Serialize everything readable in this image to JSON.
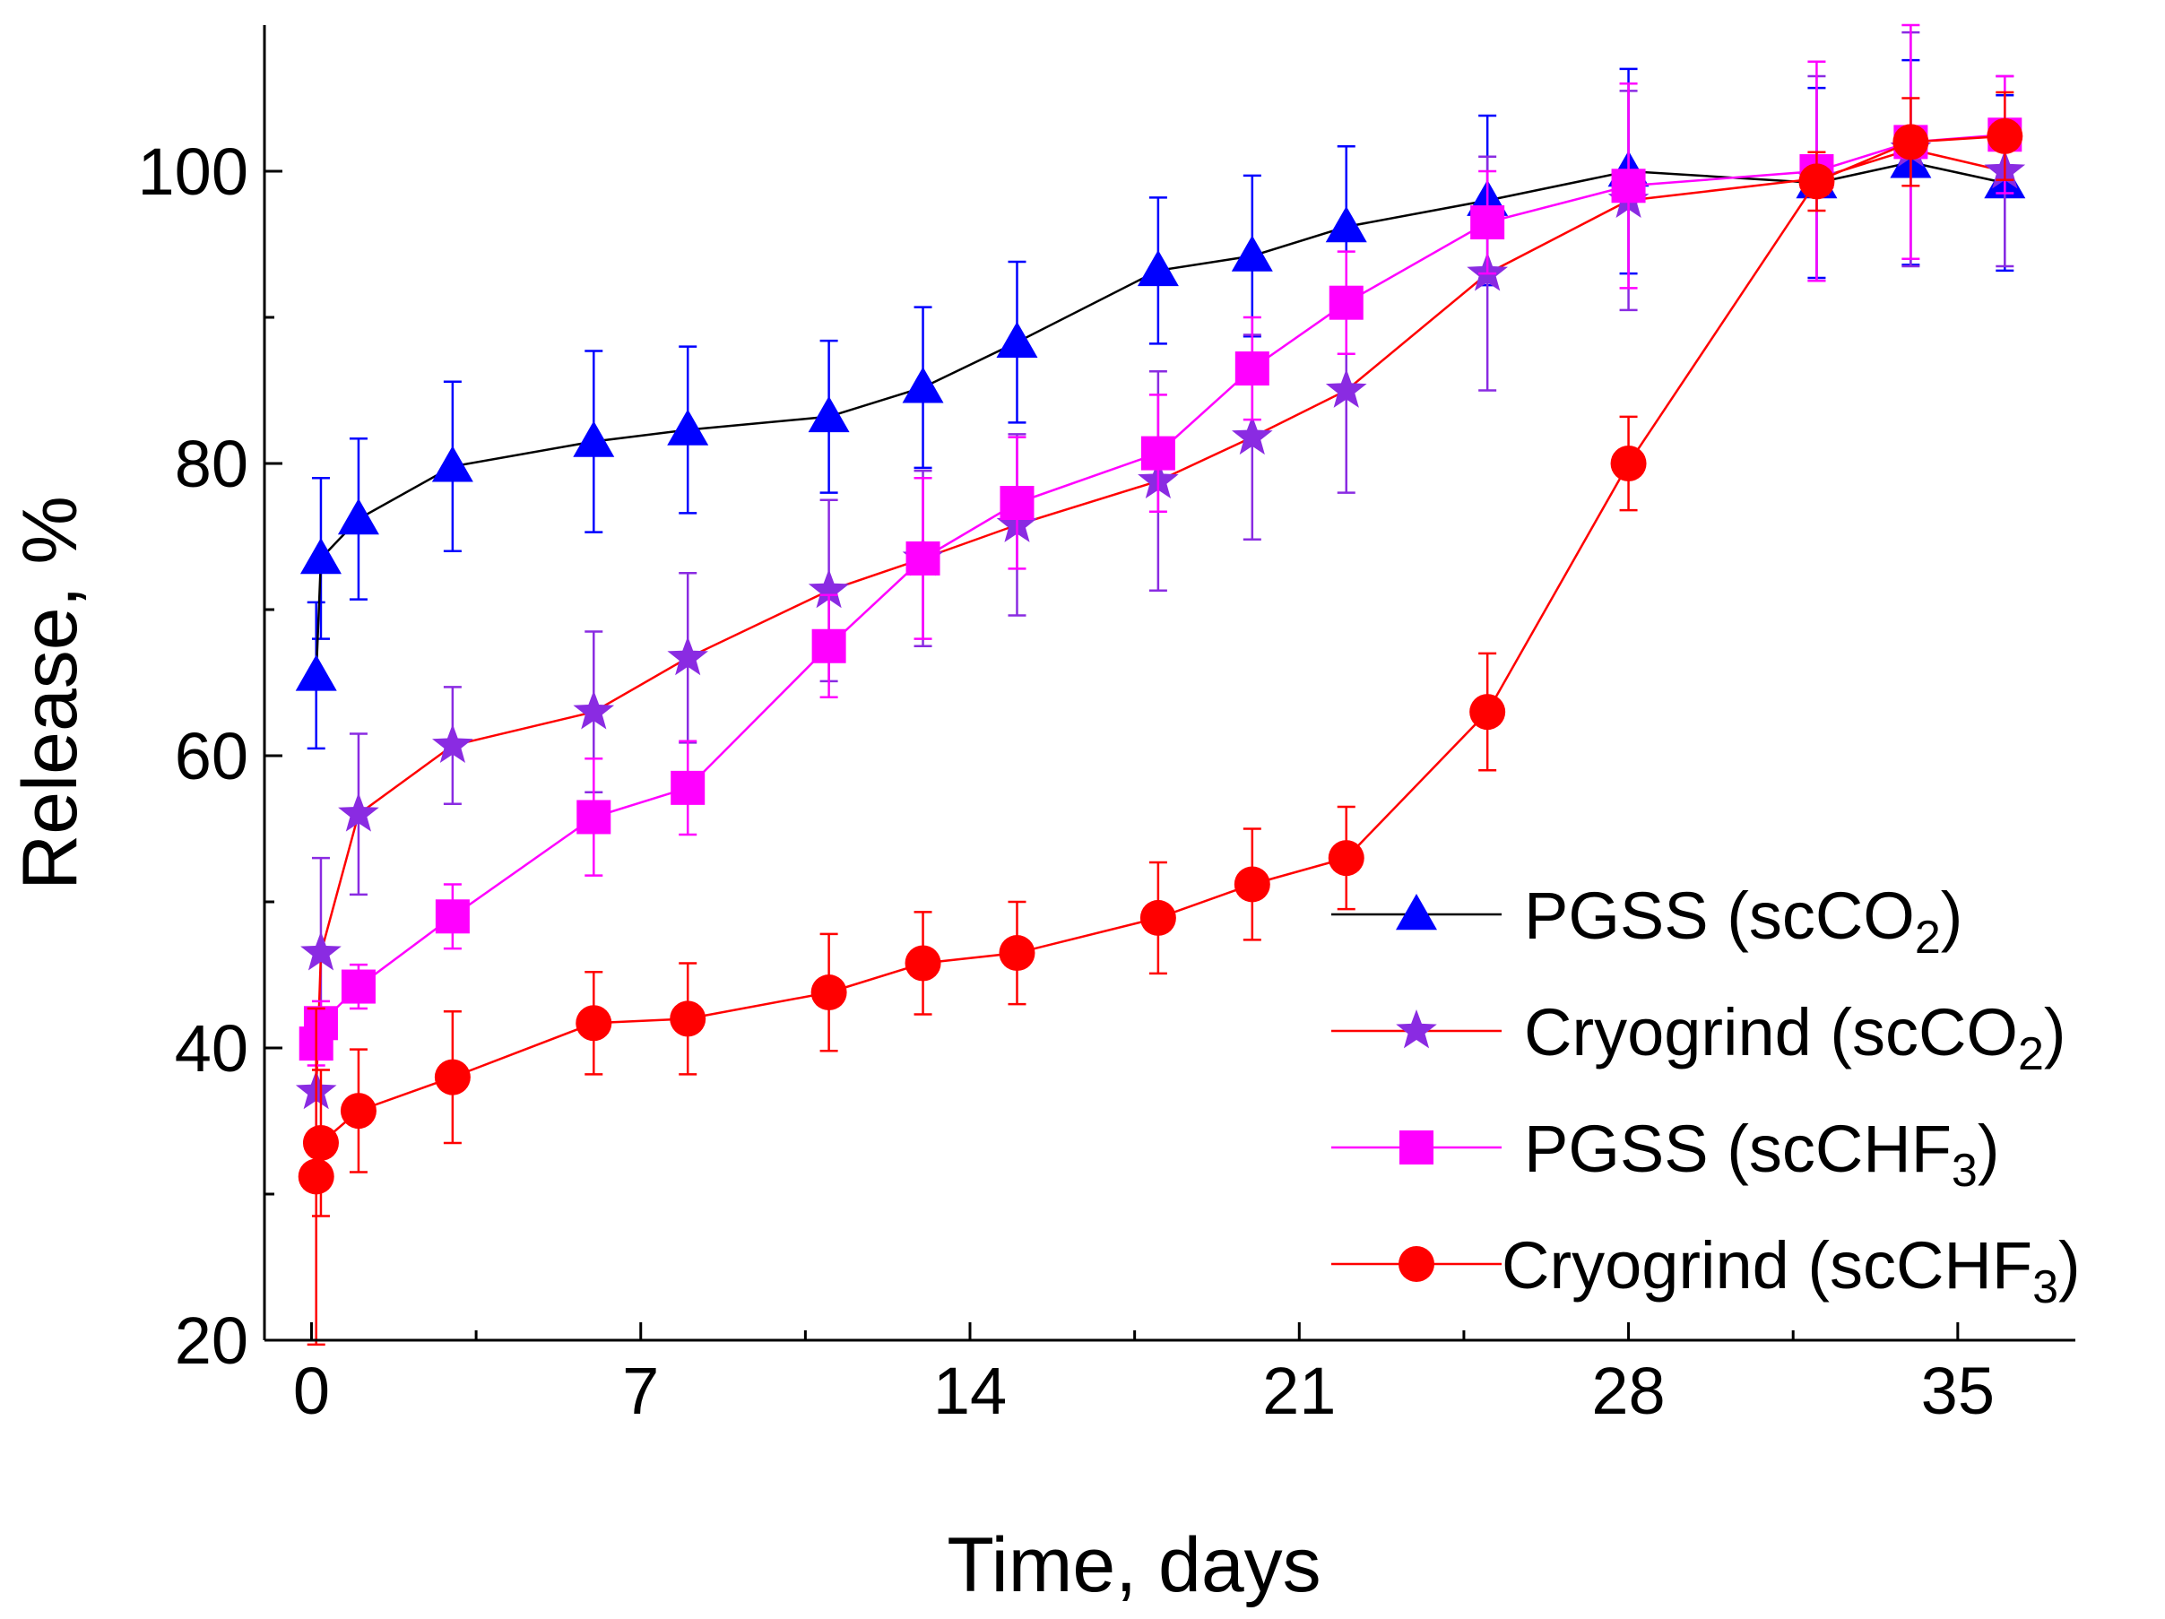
{
  "chart_data": {
    "type": "line",
    "title": "",
    "xlabel": "Time, days",
    "ylabel": "Release, %",
    "xlim": [
      -1,
      37.5
    ],
    "ylim": [
      20,
      110
    ],
    "xticks": [
      0,
      7,
      14,
      21,
      28,
      35
    ],
    "xtick_labels": [
      "0",
      "7",
      "14",
      "21",
      "28",
      "35"
    ],
    "yticks": [
      20,
      40,
      60,
      80,
      100
    ],
    "ytick_labels": [
      "20",
      "40",
      "60",
      "80",
      "100"
    ],
    "grid": false,
    "legend_position": "bottom-right",
    "series": [
      {
        "name": "PGSS (scCO2)",
        "label_main": "PGSS (scCO",
        "label_sub": "2",
        "label_tail": ")",
        "marker": "triangle",
        "line_color": "#000000",
        "marker_color": "#0000ff",
        "x": [
          0.1,
          0.2,
          1,
          3,
          6,
          8,
          11,
          13,
          15,
          18,
          20,
          22,
          25,
          28,
          32,
          34,
          36
        ],
        "y": [
          65.5,
          73.5,
          76.2,
          79.8,
          81.5,
          82.3,
          83.2,
          85.2,
          88.3,
          93.2,
          94.2,
          96.2,
          98.0,
          100.0,
          99.2,
          100.6,
          99.2
        ],
        "err": [
          5,
          5.5,
          5.5,
          5.8,
          6.2,
          5.7,
          5.2,
          5.5,
          5.5,
          5.0,
          5.5,
          5.5,
          5.8,
          7.0,
          6.5,
          7.0,
          6.0
        ]
      },
      {
        "name": "Cryogrind (scCO2)",
        "label_main": "Cryogrind (scCO",
        "label_sub": "2",
        "label_tail": ")",
        "marker": "star",
        "line_color": "#ff0000",
        "marker_color": "#8a2be2",
        "x": [
          0.1,
          0.2,
          1,
          3,
          6,
          8,
          11,
          13,
          15,
          18,
          20,
          22,
          25,
          28,
          32,
          34,
          36
        ],
        "y": [
          37.0,
          46.5,
          56.0,
          60.7,
          63.0,
          66.7,
          71.3,
          73.5,
          75.8,
          78.8,
          81.8,
          85.0,
          93.0,
          98.0,
          99.5,
          101.5,
          100.0
        ],
        "err": [
          3,
          6.5,
          5.5,
          4.0,
          5.5,
          5.8,
          6.2,
          6.0,
          6.2,
          7.5,
          7.0,
          7.0,
          8.0,
          7.5,
          7.0,
          8.0,
          6.5
        ]
      },
      {
        "name": "PGSS (scCHF3)",
        "label_main": "PGSS (scCHF",
        "label_sub": "3",
        "label_tail": ")",
        "marker": "square",
        "line_color": "#ff00ff",
        "marker_color": "#ff00ff",
        "x": [
          0.1,
          0.2,
          1,
          3,
          6,
          8,
          11,
          13,
          15,
          18,
          20,
          22,
          25,
          28,
          32,
          34,
          36
        ],
        "y": [
          40.3,
          41.7,
          44.2,
          49.0,
          55.8,
          57.8,
          67.5,
          73.5,
          77.3,
          80.7,
          86.5,
          91.0,
          96.5,
          99.0,
          100.0,
          102.0,
          102.5
        ],
        "err": [
          1.5,
          1.5,
          1.5,
          2.2,
          4.0,
          3.2,
          3.5,
          5.5,
          4.5,
          4.0,
          3.5,
          3.5,
          3.5,
          7.0,
          7.5,
          8.0,
          4.0
        ]
      },
      {
        "name": "Cryogrind (scCHF3)",
        "label_main": "Cryogrind (scCHF",
        "label_sub": "3",
        "label_tail": ")",
        "marker": "circle",
        "line_color": "#ff0000",
        "marker_color": "#ff0000",
        "x": [
          0.1,
          0.2,
          1,
          3,
          6,
          8,
          11,
          13,
          15,
          18,
          20,
          22,
          25,
          28,
          32,
          34,
          36
        ],
        "y": [
          31.2,
          33.5,
          35.7,
          38.0,
          41.7,
          42.0,
          43.8,
          45.8,
          46.5,
          48.9,
          51.2,
          53.0,
          63.0,
          80.0,
          99.3,
          102.0,
          102.4
        ],
        "err": [
          11.5,
          5.0,
          4.2,
          4.5,
          3.5,
          3.8,
          4.0,
          3.5,
          3.5,
          3.8,
          3.8,
          3.5,
          4.0,
          3.2,
          2.0,
          3.0,
          3.0
        ]
      }
    ]
  }
}
